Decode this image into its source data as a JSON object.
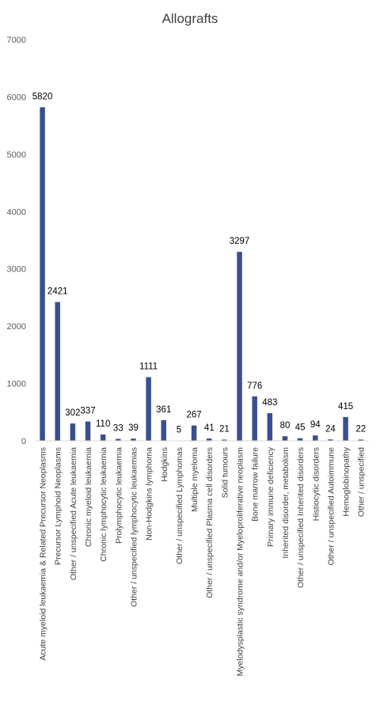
{
  "chart_data": {
    "type": "bar",
    "title": "Allografts",
    "xlabel": "",
    "ylabel": "",
    "ylim": [
      0,
      7000
    ],
    "yticks": [
      0,
      1000,
      2000,
      3000,
      4000,
      5000,
      6000,
      7000
    ],
    "grid": false,
    "legend": "none",
    "bar_color": "#3A4F8F",
    "categories": [
      "Acute myeloid leukaemia & Related Precursor Neoplasms",
      "Precursor Lymphoid Neoplasms",
      "Other / unspecified  Acute leukaemia",
      "Chronic myeloid leukaemia",
      "Chronic lymphocytic leukaemia",
      "Prolymphocytic leukaemia",
      "Other / unspecified  lymphocytic leukaemias",
      "Non-Hodgkins lymphoma",
      "Hodgkins",
      "Other / unspecified  Lymphomas",
      "Multiple myeloma",
      "Other / unspecified  Plasma cell disorders",
      "Solid tumours",
      "Myelodysplastic syndrome and/or Myeloproliferative neoplasm",
      "Bone marrow failure",
      "Primary immune deficiency",
      "Inherited disorder, metabolism",
      "Other / unspecified  Inherited disorders",
      "Histiocytic disorders",
      "Other / unspecified Autoimmune",
      "Hemoglobinopathy",
      "Other / unspecified"
    ],
    "values": [
      5820,
      2421,
      302,
      337,
      110,
      33,
      39,
      1111,
      361,
      5,
      267,
      41,
      21,
      3297,
      776,
      483,
      80,
      45,
      94,
      24,
      415,
      22
    ]
  }
}
